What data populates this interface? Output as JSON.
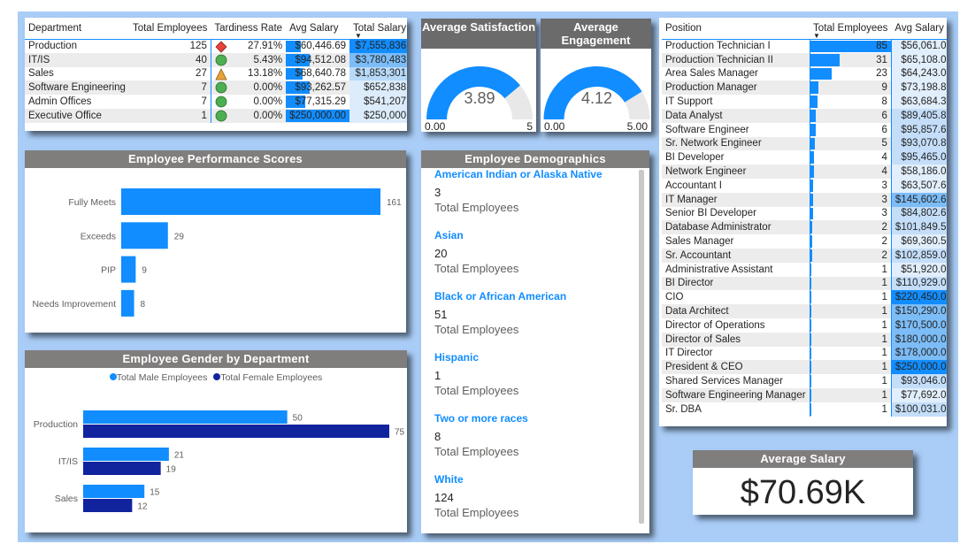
{
  "dept_table": {
    "headers": [
      "Department",
      "Total Employees",
      "Tardiness Rate",
      "Avg Salary",
      "Total Salary"
    ],
    "rows": [
      {
        "dept": "Production",
        "emp": "125",
        "icon": "diamond",
        "rate": "27.91%",
        "avg": "$60,446.69",
        "avg_frac": 0.24,
        "total": "$7,555,836",
        "total_frac": 1.0
      },
      {
        "dept": "IT/IS",
        "emp": "40",
        "icon": "circle",
        "rate": "5.43%",
        "avg": "$94,512.08",
        "avg_frac": 0.38,
        "total": "$3,780,483",
        "total_frac": 0.5
      },
      {
        "dept": "Sales",
        "emp": "27",
        "icon": "triangle",
        "rate": "13.18%",
        "avg": "$68,640.78",
        "avg_frac": 0.27,
        "total": "$1,853,301",
        "total_frac": 0.25
      },
      {
        "dept": "Software Engineering",
        "emp": "7",
        "icon": "circle",
        "rate": "0.00%",
        "avg": "$93,262.57",
        "avg_frac": 0.37,
        "total": "$652,838",
        "total_frac": 0.09
      },
      {
        "dept": "Admin Offices",
        "emp": "7",
        "icon": "circle",
        "rate": "0.00%",
        "avg": "$77,315.29",
        "avg_frac": 0.31,
        "total": "$541,207",
        "total_frac": 0.07
      },
      {
        "dept": "Executive Office",
        "emp": "1",
        "icon": "circle",
        "rate": "0.00%",
        "avg": "$250,000.00",
        "avg_frac": 1.0,
        "total": "$250,000",
        "total_frac": 0.03
      }
    ]
  },
  "gauges": [
    {
      "title": "Average Satisfaction",
      "value": "3.89",
      "min": "0.00",
      "max": "5",
      "frac": 0.778
    },
    {
      "title": "Average Engagement",
      "value": "4.12",
      "min": "0.00",
      "max": "5.00",
      "frac": 0.824
    }
  ],
  "perf": {
    "title": "Employee Performance Scores",
    "chart_data": {
      "type": "bar",
      "categories": [
        "Fully Meets",
        "Exceeds",
        "PIP",
        "Needs Improvement"
      ],
      "values": [
        161,
        29,
        9,
        8
      ],
      "xlim": [
        0,
        161
      ]
    }
  },
  "gender": {
    "title": "Employee Gender by Department",
    "legend": [
      "Total Male Employees",
      "Total Female Employees"
    ],
    "chart_data": {
      "type": "bar",
      "categories": [
        "Production",
        "IT/IS",
        "Sales"
      ],
      "series": [
        {
          "name": "Total Male Employees",
          "values": [
            50,
            21,
            15
          ],
          "color": "#118dff"
        },
        {
          "name": "Total Female Employees",
          "values": [
            75,
            19,
            12
          ],
          "color": "#12239e"
        }
      ],
      "xlim": [
        0,
        75
      ]
    }
  },
  "demographics": {
    "title": "Employee Demographics",
    "sub_label": "Total Employees",
    "items": [
      {
        "label": "American Indian or Alaska Native",
        "value": "3"
      },
      {
        "label": "Asian",
        "value": "20"
      },
      {
        "label": "Black or African American",
        "value": "51"
      },
      {
        "label": "Hispanic",
        "value": "1"
      },
      {
        "label": "Two or more races",
        "value": "8"
      },
      {
        "label": "White",
        "value": "124"
      }
    ]
  },
  "positions": {
    "headers": [
      "Position",
      "Total Employees",
      "Avg Salary"
    ],
    "max_emp": 85,
    "rows": [
      {
        "pos": "Production Technician I",
        "emp": 85,
        "sal": "$56,061.02",
        "shade": 0
      },
      {
        "pos": "Production Technician II",
        "emp": 31,
        "sal": "$65,108.06",
        "shade": 0
      },
      {
        "pos": "Area Sales Manager",
        "emp": 23,
        "sal": "$64,243.00",
        "shade": 0
      },
      {
        "pos": "Production Manager",
        "emp": 9,
        "sal": "$73,198.89",
        "shade": 0
      },
      {
        "pos": "IT Support",
        "emp": 8,
        "sal": "$63,684.38",
        "shade": 0
      },
      {
        "pos": "Data Analyst",
        "emp": 6,
        "sal": "$89,405.83",
        "shade": 1
      },
      {
        "pos": "Software Engineer",
        "emp": 6,
        "sal": "$95,857.67",
        "shade": 1
      },
      {
        "pos": "Sr. Network Engineer",
        "emp": 5,
        "sal": "$93,070.80",
        "shade": 1
      },
      {
        "pos": "BI Developer",
        "emp": 4,
        "sal": "$95,465.00",
        "shade": 1
      },
      {
        "pos": "Network Engineer",
        "emp": 4,
        "sal": "$58,186.00",
        "shade": 0
      },
      {
        "pos": "Accountant I",
        "emp": 3,
        "sal": "$63,507.67",
        "shade": 0
      },
      {
        "pos": "IT Manager",
        "emp": 3,
        "sal": "$145,602.67",
        "shade": 2
      },
      {
        "pos": "Senior BI Developer",
        "emp": 3,
        "sal": "$84,802.67",
        "shade": 1
      },
      {
        "pos": "Database Administrator",
        "emp": 2,
        "sal": "$101,849.50",
        "shade": 1
      },
      {
        "pos": "Sales Manager",
        "emp": 2,
        "sal": "$69,360.50",
        "shade": 0
      },
      {
        "pos": "Sr. Accountant",
        "emp": 2,
        "sal": "$102,859.00",
        "shade": 1
      },
      {
        "pos": "Administrative Assistant",
        "emp": 1,
        "sal": "$51,920.00",
        "shade": 0
      },
      {
        "pos": "BI Director",
        "emp": 1,
        "sal": "$110,929.00",
        "shade": 1
      },
      {
        "pos": "CIO",
        "emp": 1,
        "sal": "$220,450.00",
        "shade": 3
      },
      {
        "pos": "Data Architect",
        "emp": 1,
        "sal": "$150,290.00",
        "shade": 2
      },
      {
        "pos": "Director of Operations",
        "emp": 1,
        "sal": "$170,500.00",
        "shade": 2
      },
      {
        "pos": "Director of Sales",
        "emp": 1,
        "sal": "$180,000.00",
        "shade": 2
      },
      {
        "pos": "IT Director",
        "emp": 1,
        "sal": "$178,000.00",
        "shade": 2
      },
      {
        "pos": "President & CEO",
        "emp": 1,
        "sal": "$250,000.00",
        "shade": 3
      },
      {
        "pos": "Shared Services Manager",
        "emp": 1,
        "sal": "$93,046.00",
        "shade": 1
      },
      {
        "pos": "Software Engineering Manager",
        "emp": 1,
        "sal": "$77,692.00",
        "shade": 0
      },
      {
        "pos": "Sr. DBA",
        "emp": 1,
        "sal": "$100,031.00",
        "shade": 1
      }
    ]
  },
  "kpi": {
    "title": "Average Salary",
    "value": "$70.69K"
  },
  "colors": {
    "accent": "#118dff",
    "dark_blue": "#12239e",
    "header_gray": "#807d7d",
    "canvas": "#a9cdf7"
  }
}
